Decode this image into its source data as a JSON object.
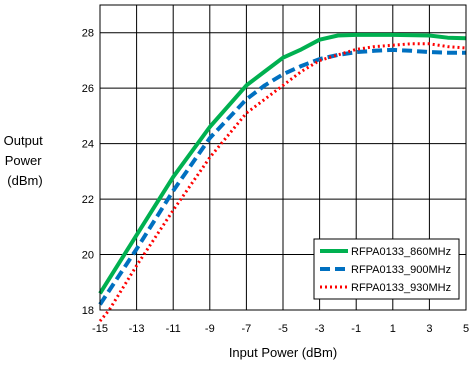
{
  "chart_data": {
    "type": "line",
    "xlabel": "Input Power (dBm)",
    "ylabel_lines": [
      "Output",
      "Power",
      "(dBm)"
    ],
    "xlim": [
      -15,
      5
    ],
    "ylim": [
      18,
      29
    ],
    "x_ticks": [
      -15,
      -13,
      -11,
      -9,
      -7,
      -5,
      -3,
      -1,
      1,
      3,
      5
    ],
    "x_tick_labels": [
      "-15",
      "-13",
      "-11",
      "-9",
      "-7",
      "-5",
      "-3",
      "-1",
      "1",
      "3",
      "5"
    ],
    "y_ticks": [
      18,
      20,
      22,
      24,
      26,
      28
    ],
    "y_tick_labels": [
      "18",
      "20",
      "22",
      "24",
      "26",
      "28"
    ],
    "grid": true,
    "legend_position": "bottom-right",
    "series": [
      {
        "name": "RFPA0133_860MHz",
        "color": "#00b050",
        "dash": "solid",
        "x": [
          -15,
          -13,
          -11,
          -9,
          -7,
          -6,
          -5,
          -4,
          -3,
          -2,
          -1,
          1,
          3,
          4,
          5
        ],
        "y": [
          18.6,
          20.7,
          22.8,
          24.6,
          26.1,
          26.6,
          27.1,
          27.4,
          27.75,
          27.9,
          27.92,
          27.92,
          27.9,
          27.82,
          27.8
        ]
      },
      {
        "name": "RFPA0133_900MHz",
        "color": "#0070c0",
        "dash": "dashed",
        "x": [
          -15,
          -13,
          -11,
          -9,
          -7,
          -6,
          -5,
          -4,
          -3,
          -2,
          -1,
          0,
          1,
          2,
          3,
          4,
          5
        ],
        "y": [
          18.2,
          20.2,
          22.3,
          24.2,
          25.6,
          26.1,
          26.5,
          26.8,
          27.05,
          27.2,
          27.3,
          27.35,
          27.38,
          27.35,
          27.3,
          27.28,
          27.28
        ]
      },
      {
        "name": "RFPA0133_930MHz",
        "color": "#ff0000",
        "dash": "dotted",
        "x": [
          -15,
          -14.5,
          -13,
          -11,
          -9,
          -7,
          -6,
          -5,
          -4,
          -3,
          -2,
          -1,
          0,
          1,
          2,
          3,
          4,
          5
        ],
        "y": [
          17.6,
          18.0,
          19.6,
          21.6,
          23.5,
          25.1,
          25.6,
          26.1,
          26.6,
          27.0,
          27.2,
          27.4,
          27.5,
          27.55,
          27.6,
          27.6,
          27.5,
          27.45
        ]
      }
    ]
  }
}
